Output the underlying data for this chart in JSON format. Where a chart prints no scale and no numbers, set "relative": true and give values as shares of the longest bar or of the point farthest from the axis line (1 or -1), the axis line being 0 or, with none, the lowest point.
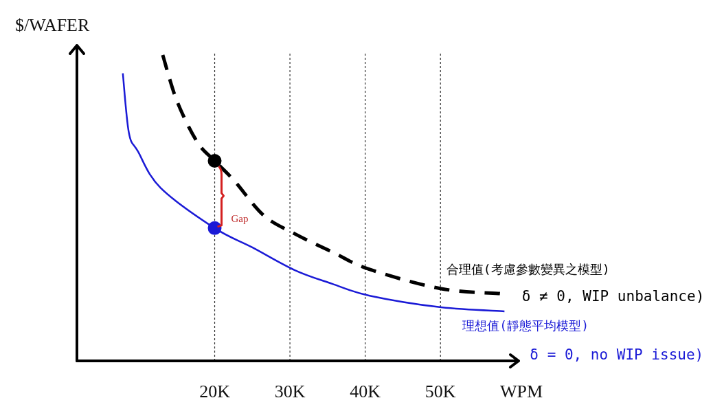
{
  "chart_data": {
    "type": "line",
    "relative": true,
    "xlabel": "WPM",
    "ylabel": "$/WAFER",
    "xlim": [
      1700,
      60200
    ],
    "xticks": [
      {
        "value": 20000,
        "label": "20K"
      },
      {
        "value": 30000,
        "label": "30K"
      },
      {
        "value": 40000,
        "label": "40K"
      },
      {
        "value": 50000,
        "label": "50K"
      }
    ],
    "grid": "x",
    "legend": false,
    "series": [
      {
        "name": "合理值(考慮參數變異之模型)",
        "color": "#000000",
        "line_style": "dashed",
        "marker": "none",
        "x": [
          13100,
          15000,
          17700,
          20000,
          22600,
          26500,
          30600,
          35700,
          40600,
          50100,
          57900
        ],
        "values": [
          1.0,
          0.849,
          0.715,
          0.654,
          0.589,
          0.476,
          0.416,
          0.355,
          0.299,
          0.236,
          0.22
        ]
      },
      {
        "name": "理想值(靜態平均模型)",
        "color": "#1a1ad6",
        "line_style": "solid",
        "marker": "none",
        "x": [
          7800,
          8600,
          9800,
          12800,
          20000,
          25000,
          30600,
          35600,
          40600,
          50100,
          58500
        ],
        "values": [
          0.94,
          0.746,
          0.685,
          0.566,
          0.434,
          0.371,
          0.297,
          0.252,
          0.213,
          0.175,
          0.162
        ]
      },
      {
        "type": "scatter",
        "color": "#000000",
        "marker": "circle",
        "x": [
          20000
        ],
        "values": [
          0.654
        ]
      },
      {
        "type": "scatter",
        "color": "#1a1ad6",
        "marker": "circle",
        "x": [
          20000
        ],
        "values": [
          0.434
        ]
      }
    ],
    "annotations": [
      "δ ≠ 0, WIP unbalance)",
      "δ = 0, no WIP issue)",
      "Gap"
    ]
  }
}
